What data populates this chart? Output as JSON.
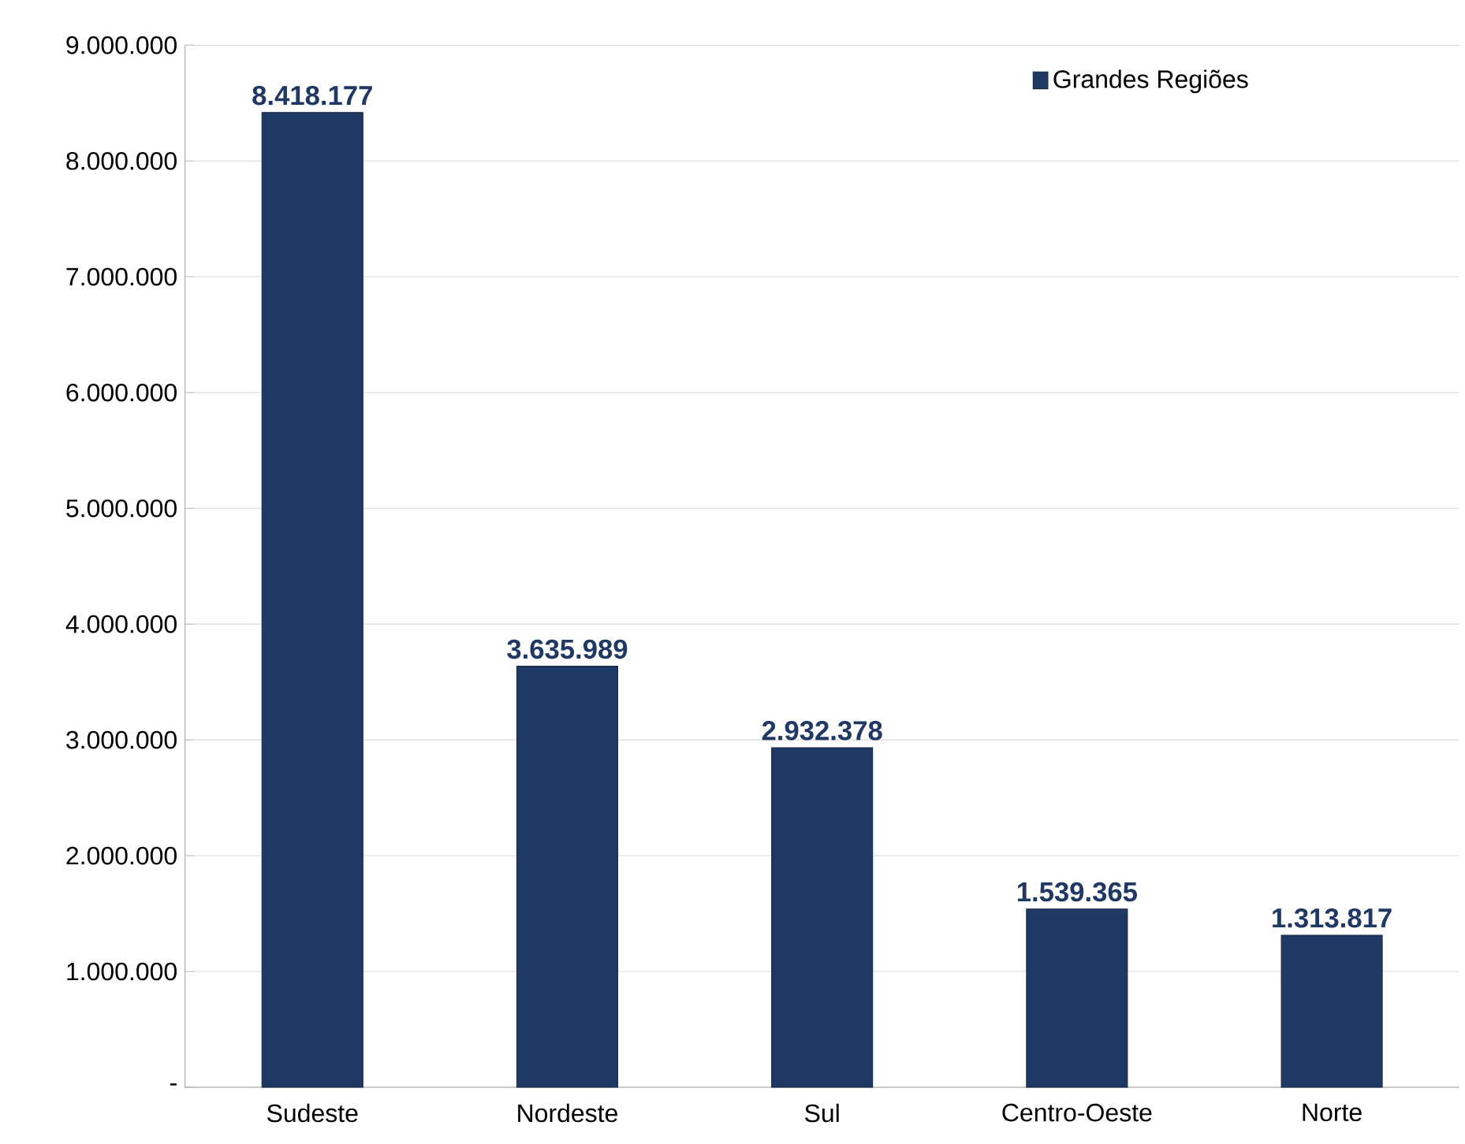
{
  "chart_data": {
    "type": "bar",
    "categories": [
      "Sudeste",
      "Nordeste",
      "Sul",
      "Centro-Oeste",
      "Norte"
    ],
    "series": [
      {
        "name": "Grandes Regiões",
        "color": "#1f3864",
        "values": [
          8418177,
          3635989,
          2932378,
          1539365,
          1313817
        ],
        "value_labels": [
          "8.418.177",
          "3.635.989",
          "2.932.378",
          "1.539.365",
          "1.313.817"
        ]
      }
    ],
    "ylim": [
      0,
      9000000
    ],
    "yticks": [
      {
        "value": 0,
        "label": "-"
      },
      {
        "value": 1000000,
        "label": "1.000.000"
      },
      {
        "value": 2000000,
        "label": "2.000.000"
      },
      {
        "value": 3000000,
        "label": "3.000.000"
      },
      {
        "value": 4000000,
        "label": "4.000.000"
      },
      {
        "value": 5000000,
        "label": "5.000.000"
      },
      {
        "value": 6000000,
        "label": "6.000.000"
      },
      {
        "value": 7000000,
        "label": "7.000.000"
      },
      {
        "value": 8000000,
        "label": "8.000.000"
      },
      {
        "value": 9000000,
        "label": "9.000.000"
      }
    ],
    "grid": "y",
    "legend": "top right"
  }
}
